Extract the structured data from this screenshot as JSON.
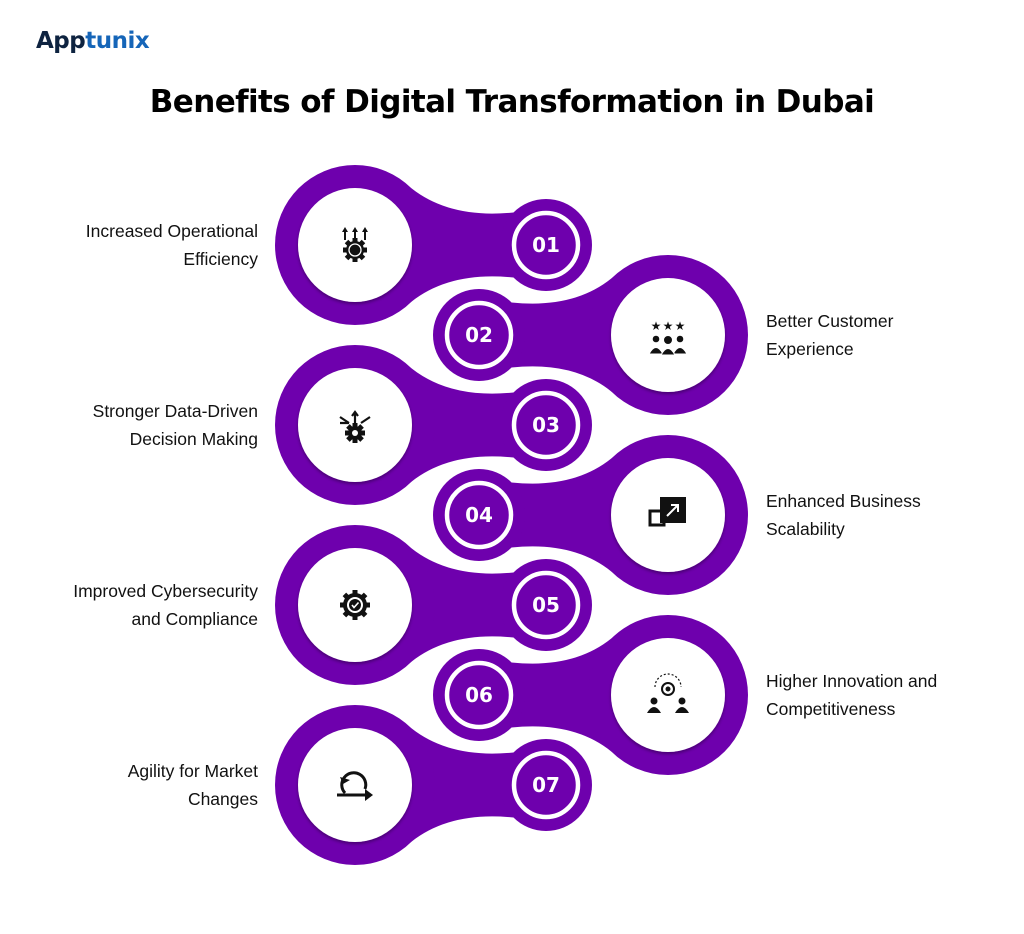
{
  "brand": {
    "logo_text_dark": "App",
    "logo_text_blue": "tunix"
  },
  "title": "Benefits of Digital Transformation in Dubai",
  "colors": {
    "accent": "#6e00ad",
    "logo_dark": "#0e2340",
    "logo_blue": "#1565b8"
  },
  "items": [
    {
      "number": "01",
      "lines": [
        "Increased Operational",
        "Efficiency"
      ],
      "icon": "gear-growth-icon",
      "side": "left"
    },
    {
      "number": "02",
      "lines": [
        "Better Customer",
        "Experience"
      ],
      "icon": "customers-rating-icon",
      "side": "right"
    },
    {
      "number": "03",
      "lines": [
        "Stronger Data-Driven",
        "Decision Making"
      ],
      "icon": "gear-arrows-icon",
      "side": "left"
    },
    {
      "number": "04",
      "lines": [
        "Enhanced Business",
        "Scalability"
      ],
      "icon": "scale-up-icon",
      "side": "right"
    },
    {
      "number": "05",
      "lines": [
        "Improved Cybersecurity",
        "and Compliance"
      ],
      "icon": "gear-check-icon",
      "side": "left"
    },
    {
      "number": "06",
      "lines": [
        "Higher Innovation and",
        "Competitiveness"
      ],
      "icon": "innovation-team-icon",
      "side": "right"
    },
    {
      "number": "07",
      "lines": [
        "Agility for Market",
        "Changes"
      ],
      "icon": "agile-cycle-icon",
      "side": "left"
    }
  ]
}
